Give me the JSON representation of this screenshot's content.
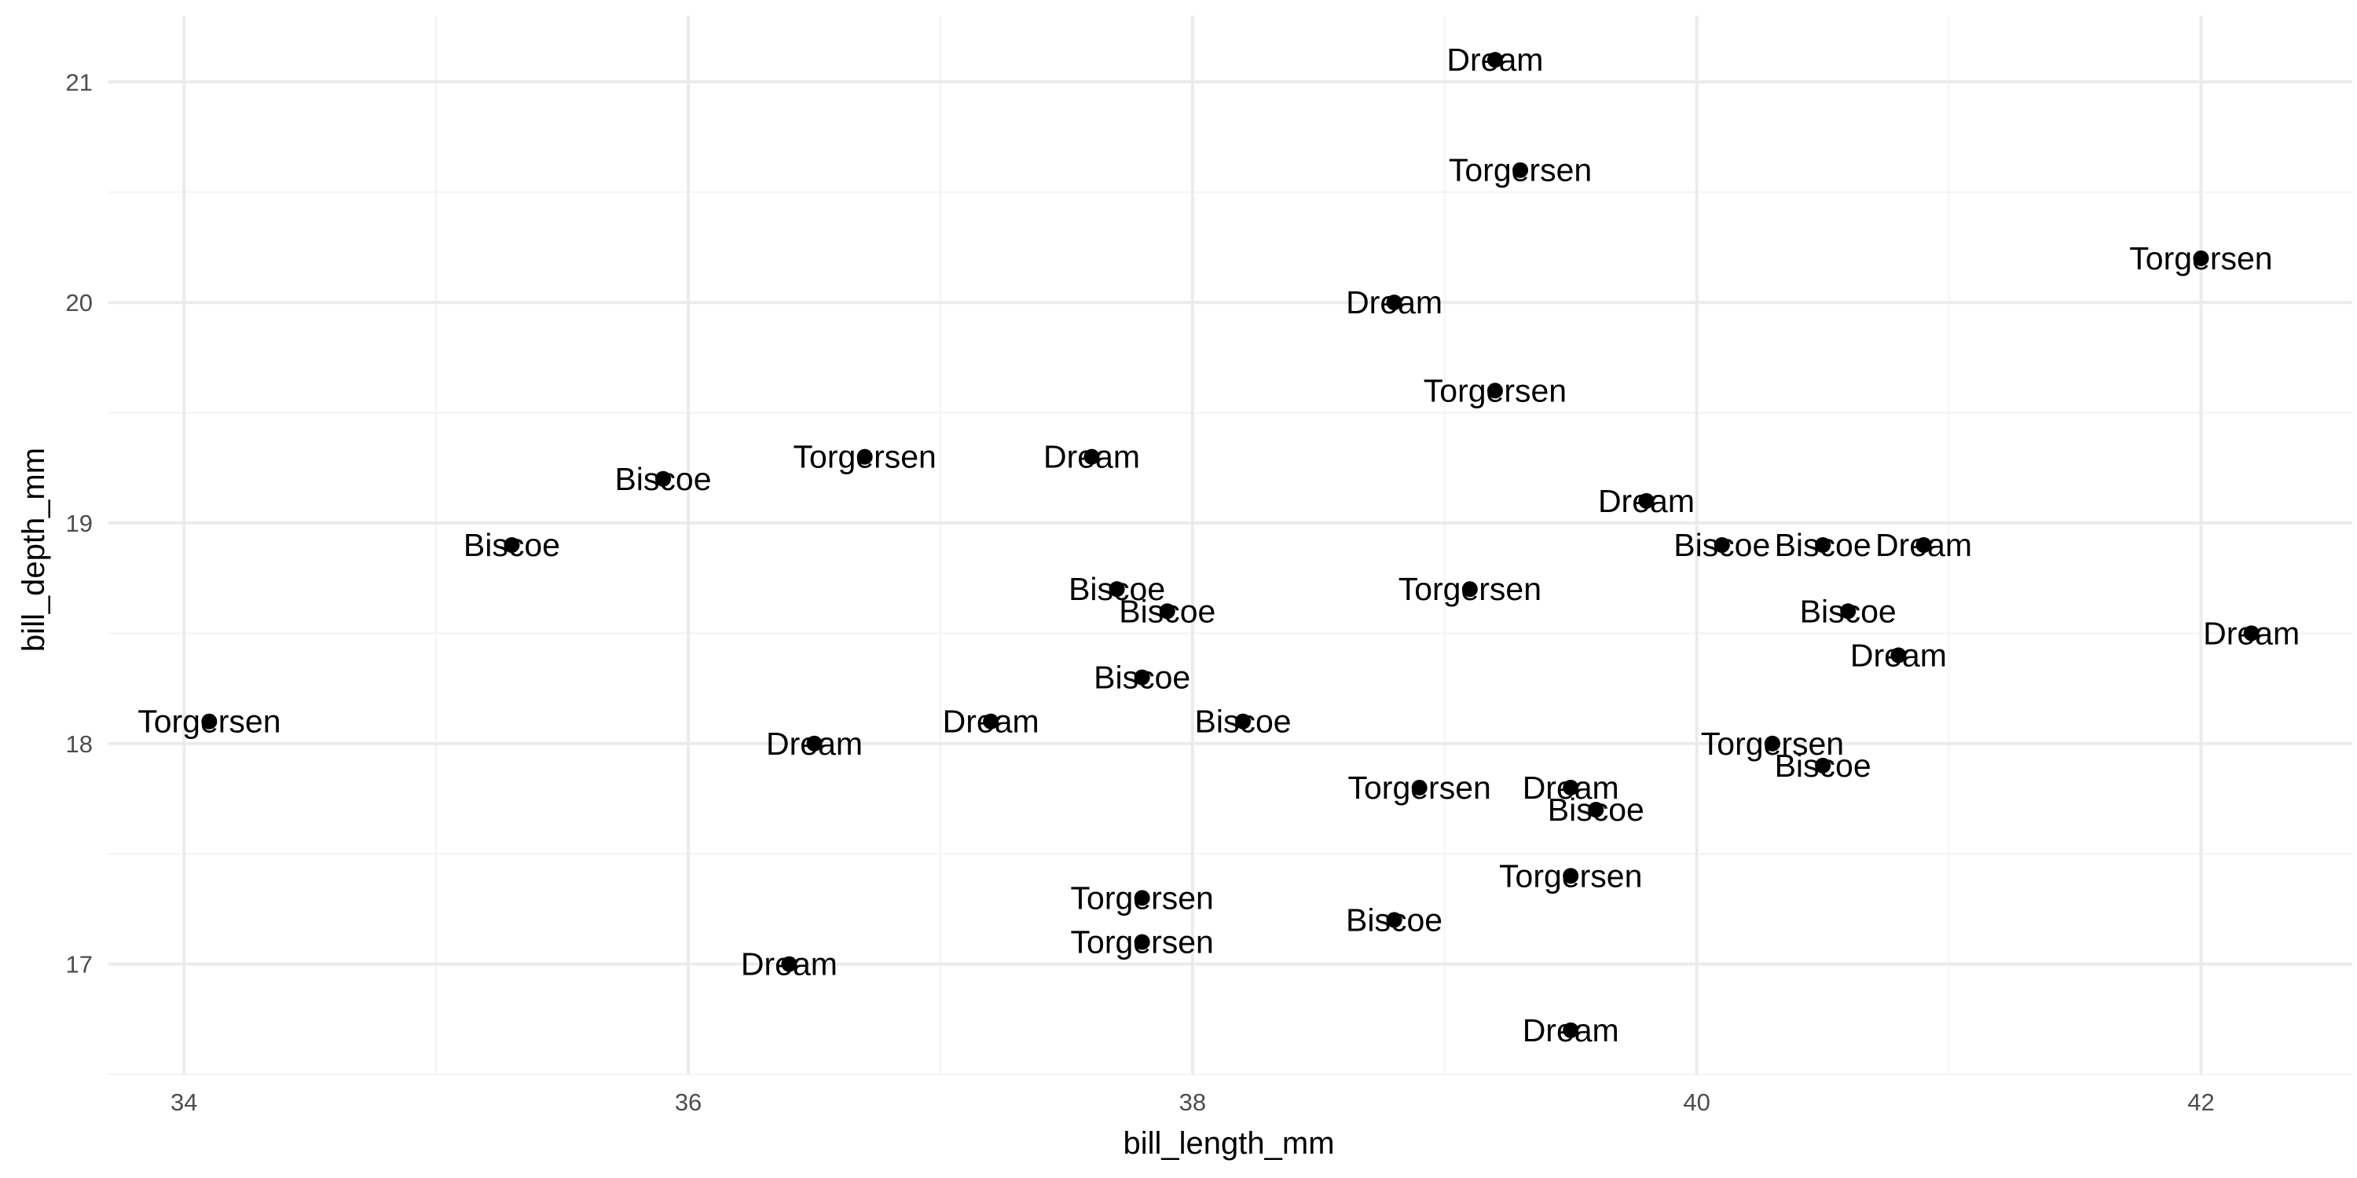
{
  "chart_data": {
    "type": "scatter",
    "title": "",
    "xlabel": "bill_length_mm",
    "ylabel": "bill_depth_mm",
    "xlim": [
      33.7,
      42.6
    ],
    "ylim": [
      16.5,
      21.3
    ],
    "x_ticks": [
      34,
      36,
      38,
      40,
      42
    ],
    "y_ticks": [
      17,
      18,
      19,
      20,
      21
    ],
    "grid": true,
    "legend": "none",
    "point_color": "#000000",
    "points": [
      {
        "x": 39.2,
        "y": 21.1,
        "label": "Dream"
      },
      {
        "x": 39.3,
        "y": 20.6,
        "label": "Torgersen"
      },
      {
        "x": 42.0,
        "y": 20.2,
        "label": "Torgersen"
      },
      {
        "x": 38.8,
        "y": 20.0,
        "label": "Dream"
      },
      {
        "x": 39.2,
        "y": 19.6,
        "label": "Torgersen"
      },
      {
        "x": 35.9,
        "y": 19.2,
        "label": "Biscoe"
      },
      {
        "x": 36.7,
        "y": 19.3,
        "label": "Torgersen"
      },
      {
        "x": 37.6,
        "y": 19.3,
        "label": "Dream"
      },
      {
        "x": 39.8,
        "y": 19.1,
        "label": "Dream"
      },
      {
        "x": 35.3,
        "y": 18.9,
        "label": "Biscoe"
      },
      {
        "x": 40.1,
        "y": 18.9,
        "label": "Biscoe"
      },
      {
        "x": 40.5,
        "y": 18.9,
        "label": "Biscoe"
      },
      {
        "x": 40.9,
        "y": 18.9,
        "label": "Dream"
      },
      {
        "x": 37.7,
        "y": 18.7,
        "label": "Biscoe"
      },
      {
        "x": 39.1,
        "y": 18.7,
        "label": "Torgersen"
      },
      {
        "x": 37.9,
        "y": 18.6,
        "label": "Biscoe"
      },
      {
        "x": 40.6,
        "y": 18.6,
        "label": "Biscoe"
      },
      {
        "x": 42.2,
        "y": 18.5,
        "label": "Dream"
      },
      {
        "x": 40.8,
        "y": 18.4,
        "label": "Dream"
      },
      {
        "x": 37.8,
        "y": 18.3,
        "label": "Biscoe"
      },
      {
        "x": 34.1,
        "y": 18.1,
        "label": "Torgersen"
      },
      {
        "x": 37.2,
        "y": 18.1,
        "label": "Dream"
      },
      {
        "x": 38.2,
        "y": 18.1,
        "label": "Biscoe"
      },
      {
        "x": 36.5,
        "y": 18.0,
        "label": "Dream"
      },
      {
        "x": 40.3,
        "y": 18.0,
        "label": "Torgersen"
      },
      {
        "x": 40.5,
        "y": 17.9,
        "label": "Biscoe"
      },
      {
        "x": 38.9,
        "y": 17.8,
        "label": "Torgersen"
      },
      {
        "x": 39.5,
        "y": 17.8,
        "label": "Dream"
      },
      {
        "x": 39.6,
        "y": 17.7,
        "label": "Biscoe"
      },
      {
        "x": 39.5,
        "y": 17.4,
        "label": "Torgersen"
      },
      {
        "x": 37.8,
        "y": 17.3,
        "label": "Torgersen"
      },
      {
        "x": 38.8,
        "y": 17.2,
        "label": "Biscoe"
      },
      {
        "x": 37.8,
        "y": 17.1,
        "label": "Torgersen"
      },
      {
        "x": 36.4,
        "y": 17.0,
        "label": "Dream"
      },
      {
        "x": 39.5,
        "y": 16.7,
        "label": "Dream"
      }
    ]
  }
}
